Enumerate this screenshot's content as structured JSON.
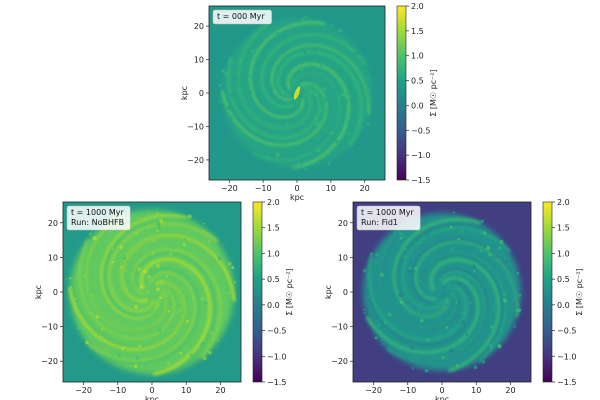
{
  "chart_data": [
    {
      "type": "heatmap",
      "panel_id": "top",
      "annotation": [
        "t = 000 Myr"
      ],
      "xlabel": "kpc",
      "ylabel": "kpc",
      "xlim": [
        -26,
        26
      ],
      "ylim": [
        -26,
        26
      ],
      "xticks": [
        -20,
        -10,
        0,
        10,
        20
      ],
      "yticks": [
        -20,
        -10,
        0,
        10,
        20
      ],
      "colorbar": {
        "label": "Σ [M☉ pc⁻²]",
        "range": [
          -1.5,
          2.0
        ],
        "ticks": [
          -1.5,
          -1.0,
          -0.5,
          0.0,
          0.5,
          1.0,
          1.5,
          2.0
        ]
      },
      "colormap": "viridis",
      "background_level": 0.35,
      "disk_level": 0.55,
      "arm_level": 1.05,
      "disk_radius": 22
    },
    {
      "type": "heatmap",
      "panel_id": "bottom-left",
      "annotation": [
        "t = 1000 Myr",
        "Run: NoBHFB"
      ],
      "xlabel": "kpc",
      "ylabel": "kpc",
      "xlim": [
        -26,
        26
      ],
      "ylim": [
        -26,
        26
      ],
      "xticks": [
        -20,
        -10,
        0,
        10,
        20
      ],
      "yticks": [
        -20,
        -10,
        0,
        10,
        20
      ],
      "colorbar": {
        "label": "Σ [M☉ pc⁻²]",
        "range": [
          -1.5,
          2.0
        ],
        "ticks": [
          -1.5,
          -1.0,
          -0.5,
          0.0,
          0.5,
          1.0,
          1.5,
          2.0
        ]
      },
      "colormap": "viridis",
      "background_level": 0.4,
      "disk_level": 1.15,
      "arm_level": 1.55,
      "disk_radius": 24
    },
    {
      "type": "heatmap",
      "panel_id": "bottom-right",
      "annotation": [
        "t = 1000 Myr",
        "Run: Fid1"
      ],
      "xlabel": "kpc",
      "ylabel": "kpc",
      "xlim": [
        -26,
        26
      ],
      "ylim": [
        -26,
        26
      ],
      "xticks": [
        -20,
        -10,
        0,
        10,
        20
      ],
      "yticks": [
        -20,
        -10,
        0,
        10,
        20
      ],
      "colorbar": {
        "label": "Σ [M☉ pc⁻²]",
        "range": [
          -1.5,
          2.0
        ],
        "ticks": [
          -1.5,
          -1.0,
          -0.5,
          0.0,
          0.5,
          1.0,
          1.5,
          2.0
        ]
      },
      "colormap": "viridis",
      "background_level": -0.85,
      "disk_level": 0.3,
      "arm_level": 0.8,
      "disk_radius": 23
    }
  ]
}
